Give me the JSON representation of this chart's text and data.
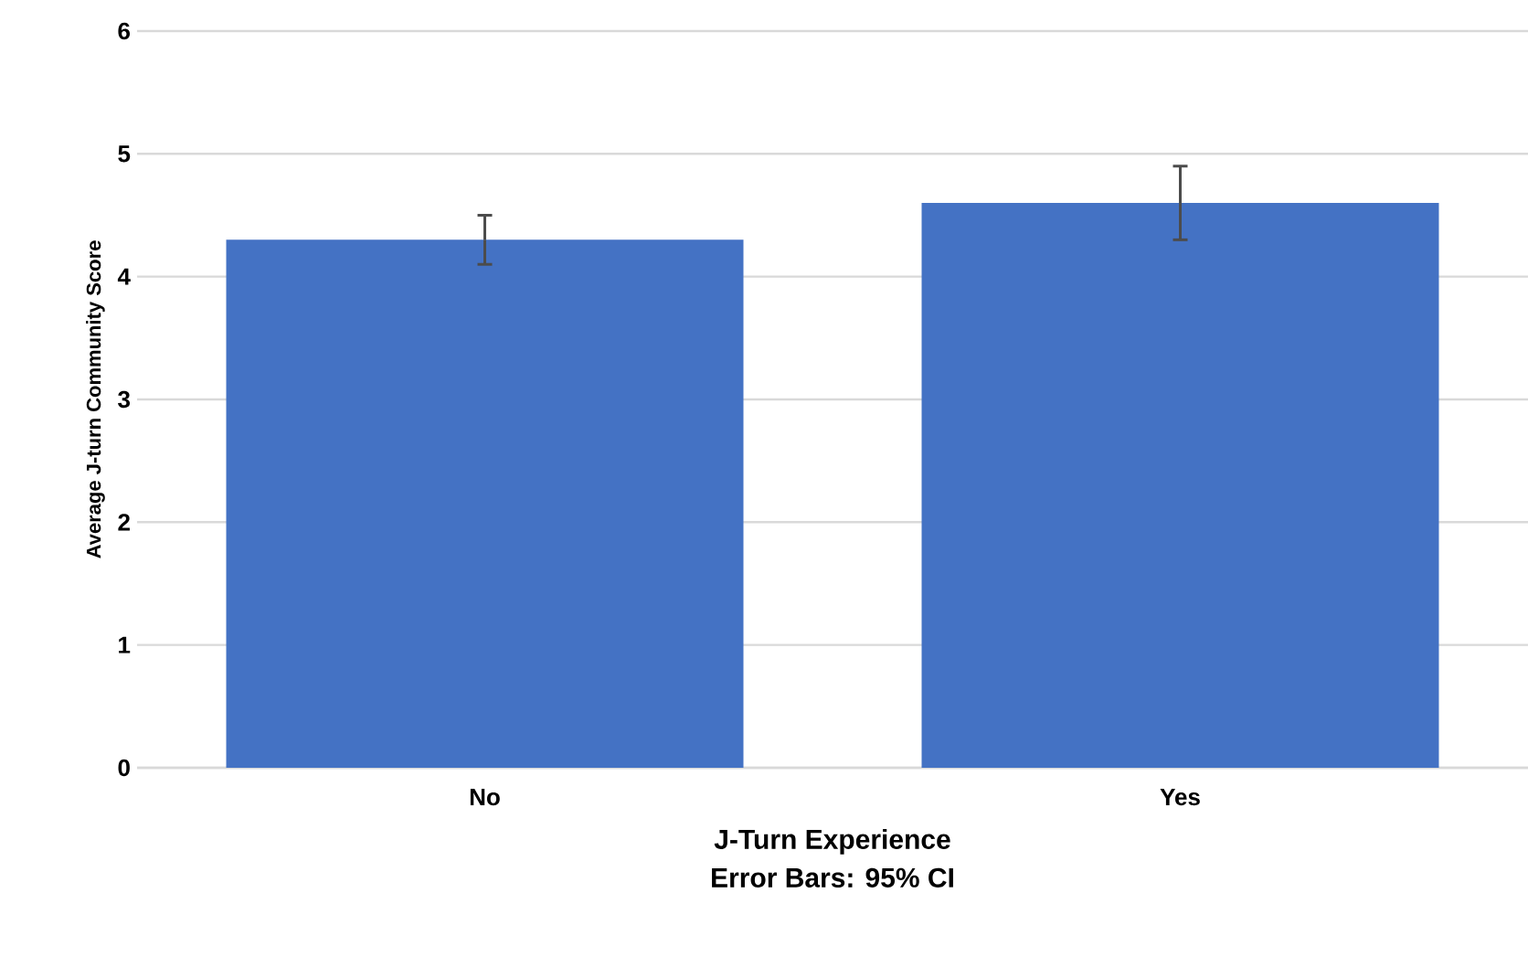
{
  "chart_data": {
    "type": "bar",
    "xlabel": "J-Turn Experience",
    "ylabel": "Average J-turn Community Score",
    "categories": [
      "No",
      "Yes"
    ],
    "values": [
      4.3,
      4.6
    ],
    "errors": [
      0.2,
      0.3
    ],
    "color": "#4472c4",
    "ylim": [
      0,
      6
    ],
    "yticks": [
      0,
      1,
      2,
      3,
      4,
      5,
      6
    ],
    "grid": "y",
    "annotations": [
      "Error Bars: 95% CI"
    ]
  }
}
